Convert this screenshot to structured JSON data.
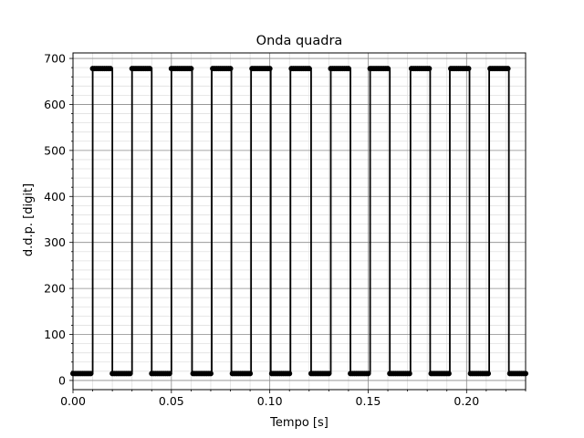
{
  "chart_data": {
    "type": "line",
    "title": "Onda quadra",
    "xlabel": "Tempo [s]",
    "ylabel": "d.d.p. [digit]",
    "xlim": [
      0.0,
      0.23
    ],
    "ylim": [
      -20,
      712
    ],
    "xticks": [
      0.0,
      0.05,
      0.1,
      0.15,
      0.2
    ],
    "xtick_labels": [
      "0.00",
      "0.05",
      "0.10",
      "0.15",
      "0.20"
    ],
    "yticks": [
      0,
      100,
      200,
      300,
      400,
      500,
      600,
      700
    ],
    "ytick_labels": [
      "0",
      "100",
      "200",
      "300",
      "400",
      "500",
      "600",
      "700"
    ],
    "grid": true,
    "minor_grid": true,
    "legend": "none",
    "series": [
      {
        "color": "#000000",
        "marker": "circle",
        "low_value": 15,
        "high_value": 678,
        "transitions_rise": [
          0.01,
          0.03,
          0.05,
          0.0705,
          0.0905,
          0.1105,
          0.131,
          0.151,
          0.1715,
          0.1915,
          0.2115
        ],
        "transitions_fall": [
          0.02,
          0.04,
          0.0605,
          0.0805,
          0.1005,
          0.121,
          0.141,
          0.161,
          0.1815,
          0.2015,
          0.2215
        ],
        "sample_step": 0.001
      }
    ]
  }
}
